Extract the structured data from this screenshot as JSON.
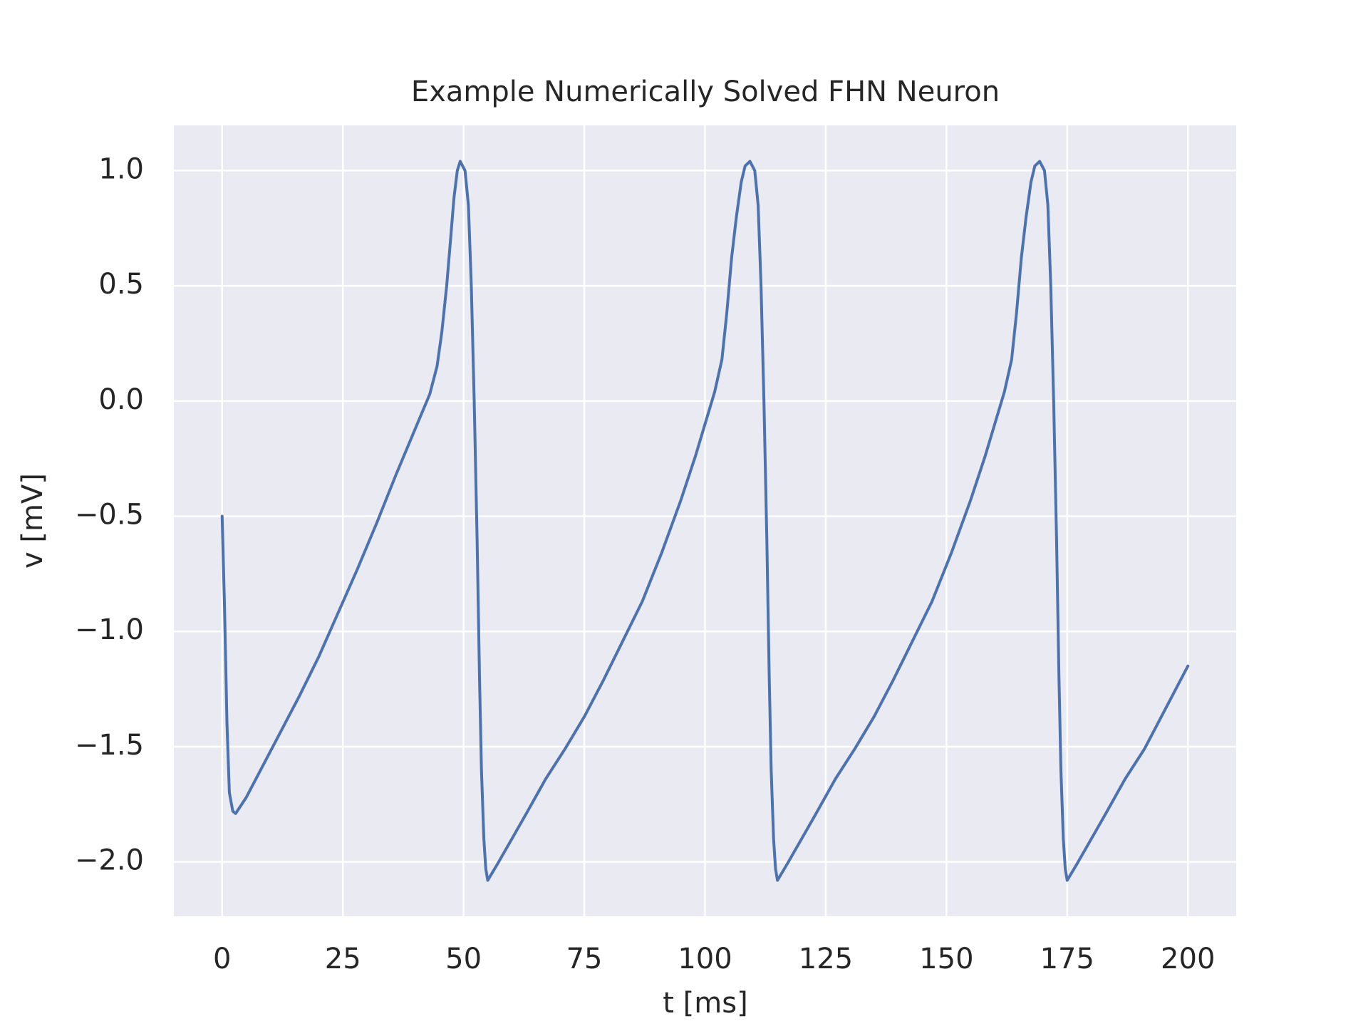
{
  "chart_data": {
    "type": "line",
    "title": "Example Numerically Solved FHN Neuron",
    "x_label": "t [ms]",
    "y_label": "v [mV]",
    "xlim": [
      -10,
      210
    ],
    "ylim": [
      -2.236,
      1.196
    ],
    "xticks": [
      0,
      25,
      50,
      75,
      100,
      125,
      150,
      175,
      200
    ],
    "yticks": [
      {
        "value": -2.0,
        "label": "−2.0"
      },
      {
        "value": -1.5,
        "label": "−1.5"
      },
      {
        "value": -1.0,
        "label": "−1.0"
      },
      {
        "value": -0.5,
        "label": "−0.5"
      },
      {
        "value": 0.0,
        "label": "0.0"
      },
      {
        "value": 0.5,
        "label": "0.5"
      },
      {
        "value": 1.0,
        "label": "1.0"
      }
    ],
    "grid": true,
    "x": [
      0,
      0.5,
      1.0,
      1.5,
      2.2,
      2.8,
      5,
      8,
      12,
      16,
      20,
      24,
      28,
      32,
      36,
      40,
      43,
      44.5,
      45.5,
      46.5,
      47.3,
      48,
      48.7,
      49.3,
      50.3,
      51.0,
      51.6,
      52.2,
      52.8,
      53.3,
      53.7,
      54.2,
      54.6,
      55,
      57,
      60,
      63,
      67,
      71,
      75,
      79,
      83,
      87,
      91,
      95,
      98,
      100,
      102,
      103.5,
      104.5,
      105.5,
      106.5,
      107.5,
      108.3,
      109.3,
      110.3,
      111,
      111.6,
      112.2,
      112.8,
      113.3,
      113.7,
      114.2,
      114.6,
      115,
      117,
      120,
      123,
      127,
      131,
      135,
      139,
      143,
      147,
      151,
      155,
      158,
      160,
      162,
      163.5,
      164.5,
      165.5,
      166.5,
      167.5,
      168.3,
      169.3,
      170.3,
      171,
      171.6,
      172.2,
      172.8,
      173.3,
      173.7,
      174.2,
      174.6,
      175,
      177,
      180,
      183,
      187,
      191,
      195,
      200
    ],
    "series": [
      {
        "name": "v",
        "color": "#4c72b0",
        "values": [
          -0.5,
          -0.9,
          -1.4,
          -1.7,
          -1.78,
          -1.79,
          -1.72,
          -1.6,
          -1.44,
          -1.28,
          -1.11,
          -0.92,
          -0.73,
          -0.53,
          -0.32,
          -0.12,
          0.03,
          0.15,
          0.3,
          0.5,
          0.7,
          0.88,
          1.0,
          1.04,
          1.0,
          0.85,
          0.5,
          0.0,
          -0.6,
          -1.2,
          -1.6,
          -1.9,
          -2.03,
          -2.08,
          -2.01,
          -1.9,
          -1.79,
          -1.64,
          -1.51,
          -1.37,
          -1.21,
          -1.04,
          -0.87,
          -0.66,
          -0.43,
          -0.24,
          -0.1,
          0.04,
          0.18,
          0.38,
          0.62,
          0.8,
          0.95,
          1.02,
          1.04,
          1.0,
          0.85,
          0.5,
          0.0,
          -0.6,
          -1.2,
          -1.6,
          -1.9,
          -2.03,
          -2.08,
          -2.01,
          -1.9,
          -1.79,
          -1.64,
          -1.51,
          -1.37,
          -1.21,
          -1.04,
          -0.87,
          -0.66,
          -0.43,
          -0.24,
          -0.1,
          0.04,
          0.18,
          0.38,
          0.62,
          0.8,
          0.95,
          1.02,
          1.04,
          1.0,
          0.85,
          0.5,
          0.0,
          -0.6,
          -1.2,
          -1.6,
          -1.9,
          -2.03,
          -2.08,
          -2.01,
          -1.9,
          -1.79,
          -1.64,
          -1.51,
          -1.35,
          -1.15
        ]
      }
    ]
  }
}
